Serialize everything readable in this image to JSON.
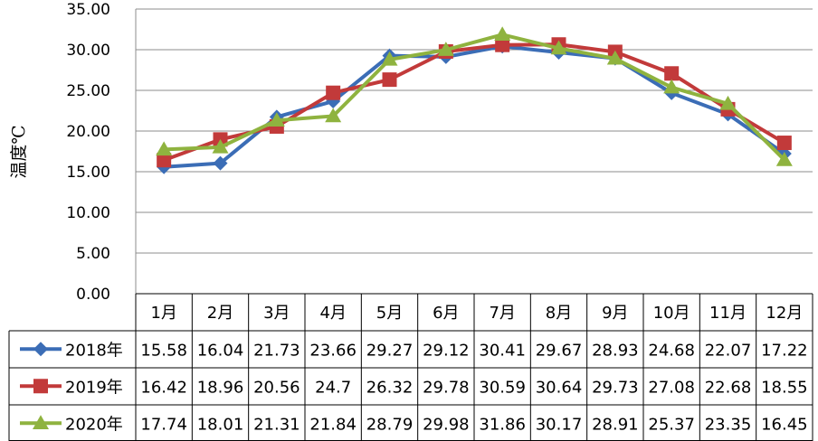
{
  "chart_data": {
    "type": "line",
    "title": "",
    "xlabel": "",
    "ylabel": "温度℃",
    "ylim": [
      0,
      35
    ],
    "yticks": [
      "0.00",
      "5.00",
      "10.00",
      "15.00",
      "20.00",
      "25.00",
      "30.00",
      "35.00"
    ],
    "grid": true,
    "legend": "bottom-table",
    "categories": [
      "1月",
      "2月",
      "3月",
      "4月",
      "5月",
      "6月",
      "7月",
      "8月",
      "9月",
      "10月",
      "11月",
      "12月"
    ],
    "series": [
      {
        "name": "2018年",
        "color": "#3b6db6",
        "marker": "diamond",
        "values": [
          15.58,
          16.04,
          21.73,
          23.66,
          29.27,
          29.12,
          30.41,
          29.67,
          28.93,
          24.68,
          22.07,
          17.22
        ],
        "labels": [
          "15.58",
          "16.04",
          "21.73",
          "23.66",
          "29.27",
          "29.12",
          "30.41",
          "29.67",
          "28.93",
          "24.68",
          "22.07",
          "17.22"
        ]
      },
      {
        "name": "2019年",
        "color": "#c23a3a",
        "marker": "square",
        "values": [
          16.42,
          18.96,
          20.56,
          24.7,
          26.32,
          29.78,
          30.59,
          30.64,
          29.73,
          27.08,
          22.68,
          18.55
        ],
        "labels": [
          "16.42",
          "18.96",
          "20.56",
          "24.7",
          "26.32",
          "29.78",
          "30.59",
          "30.64",
          "29.73",
          "27.08",
          "22.68",
          "18.55"
        ]
      },
      {
        "name": "2020年",
        "color": "#8fb33f",
        "marker": "triangle",
        "values": [
          17.74,
          18.01,
          21.31,
          21.84,
          28.79,
          29.98,
          31.86,
          30.17,
          28.91,
          25.37,
          23.35,
          16.45
        ],
        "labels": [
          "17.74",
          "18.01",
          "21.31",
          "21.84",
          "28.79",
          "29.98",
          "31.86",
          "30.17",
          "28.91",
          "25.37",
          "23.35",
          "16.45"
        ]
      }
    ]
  }
}
